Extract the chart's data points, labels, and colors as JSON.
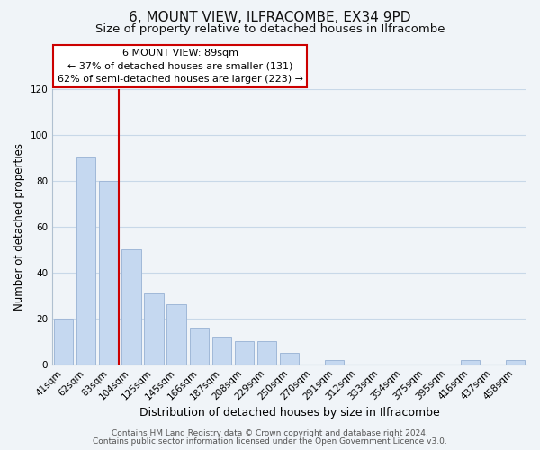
{
  "title": "6, MOUNT VIEW, ILFRACOMBE, EX34 9PD",
  "subtitle": "Size of property relative to detached houses in Ilfracombe",
  "xlabel": "Distribution of detached houses by size in Ilfracombe",
  "ylabel": "Number of detached properties",
  "bar_labels": [
    "41sqm",
    "62sqm",
    "83sqm",
    "104sqm",
    "125sqm",
    "145sqm",
    "166sqm",
    "187sqm",
    "208sqm",
    "229sqm",
    "250sqm",
    "270sqm",
    "291sqm",
    "312sqm",
    "333sqm",
    "354sqm",
    "375sqm",
    "395sqm",
    "416sqm",
    "437sqm",
    "458sqm"
  ],
  "bar_values": [
    20,
    90,
    80,
    50,
    31,
    26,
    16,
    12,
    10,
    10,
    5,
    0,
    2,
    0,
    0,
    0,
    0,
    0,
    2,
    0,
    2
  ],
  "bar_color": "#c5d8f0",
  "bar_edge_color": "#a0b8d8",
  "vline_color": "#cc0000",
  "ylim": [
    0,
    120
  ],
  "yticks": [
    0,
    20,
    40,
    60,
    80,
    100,
    120
  ],
  "annotation_title": "6 MOUNT VIEW: 89sqm",
  "annotation_line1": "← 37% of detached houses are smaller (131)",
  "annotation_line2": "62% of semi-detached houses are larger (223) →",
  "annotation_box_color": "#ffffff",
  "annotation_box_edge": "#cc0000",
  "footer_line1": "Contains HM Land Registry data © Crown copyright and database right 2024.",
  "footer_line2": "Contains public sector information licensed under the Open Government Licence v3.0.",
  "background_color": "#f0f4f8",
  "grid_color": "#c8d8e8",
  "title_fontsize": 11,
  "subtitle_fontsize": 9.5,
  "xlabel_fontsize": 9,
  "ylabel_fontsize": 8.5,
  "tick_fontsize": 7.5,
  "footer_fontsize": 6.5
}
